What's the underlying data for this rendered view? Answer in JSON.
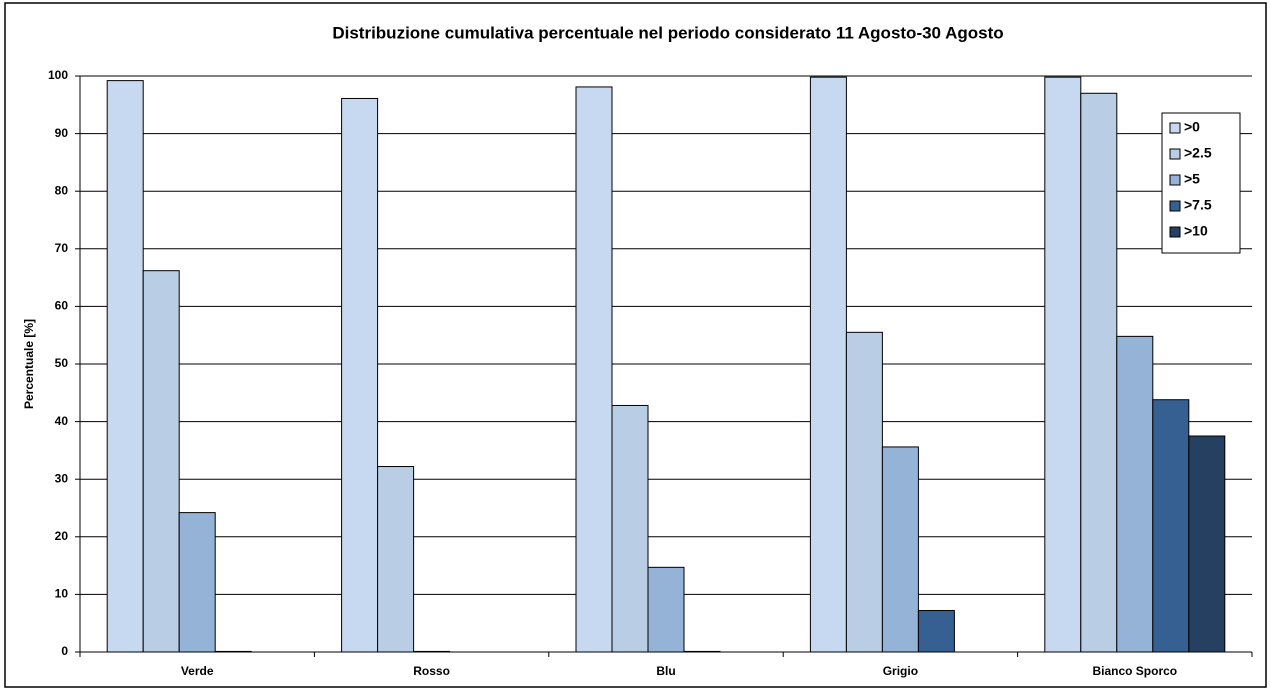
{
  "chart_data": {
    "type": "bar",
    "title": "Distribuzione  cumulativa  percentuale  nel periodo considerato 11 Agosto-30 Agosto",
    "y_label": "Percentuale [%]",
    "categories": [
      "Verde",
      "Rosso",
      "Blu",
      "Grigio",
      "Bianco Sporco"
    ],
    "series": [
      {
        "name": ">0",
        "color": "#c6d9f1",
        "values": [
          99.2,
          96.1,
          98.1,
          99.8,
          99.8
        ]
      },
      {
        "name": ">2.5",
        "color": "#b9cde5",
        "values": [
          66.2,
          32.2,
          42.8,
          55.5,
          97.0
        ]
      },
      {
        "name": ">5",
        "color": "#95b3d7",
        "values": [
          24.2,
          0.1,
          14.7,
          35.6,
          54.8
        ]
      },
      {
        "name": ">7.5",
        "color": "#376092",
        "values": [
          0.1,
          0,
          0.1,
          7.2,
          43.8
        ]
      },
      {
        "name": ">10",
        "color": "#254061",
        "values": [
          0,
          0,
          0,
          0,
          37.5
        ]
      }
    ],
    "ylim": [
      0,
      100
    ],
    "yticks": [
      0,
      10,
      20,
      30,
      40,
      50,
      60,
      70,
      80,
      90,
      100
    ],
    "grid": true,
    "legend": "upper-right"
  }
}
